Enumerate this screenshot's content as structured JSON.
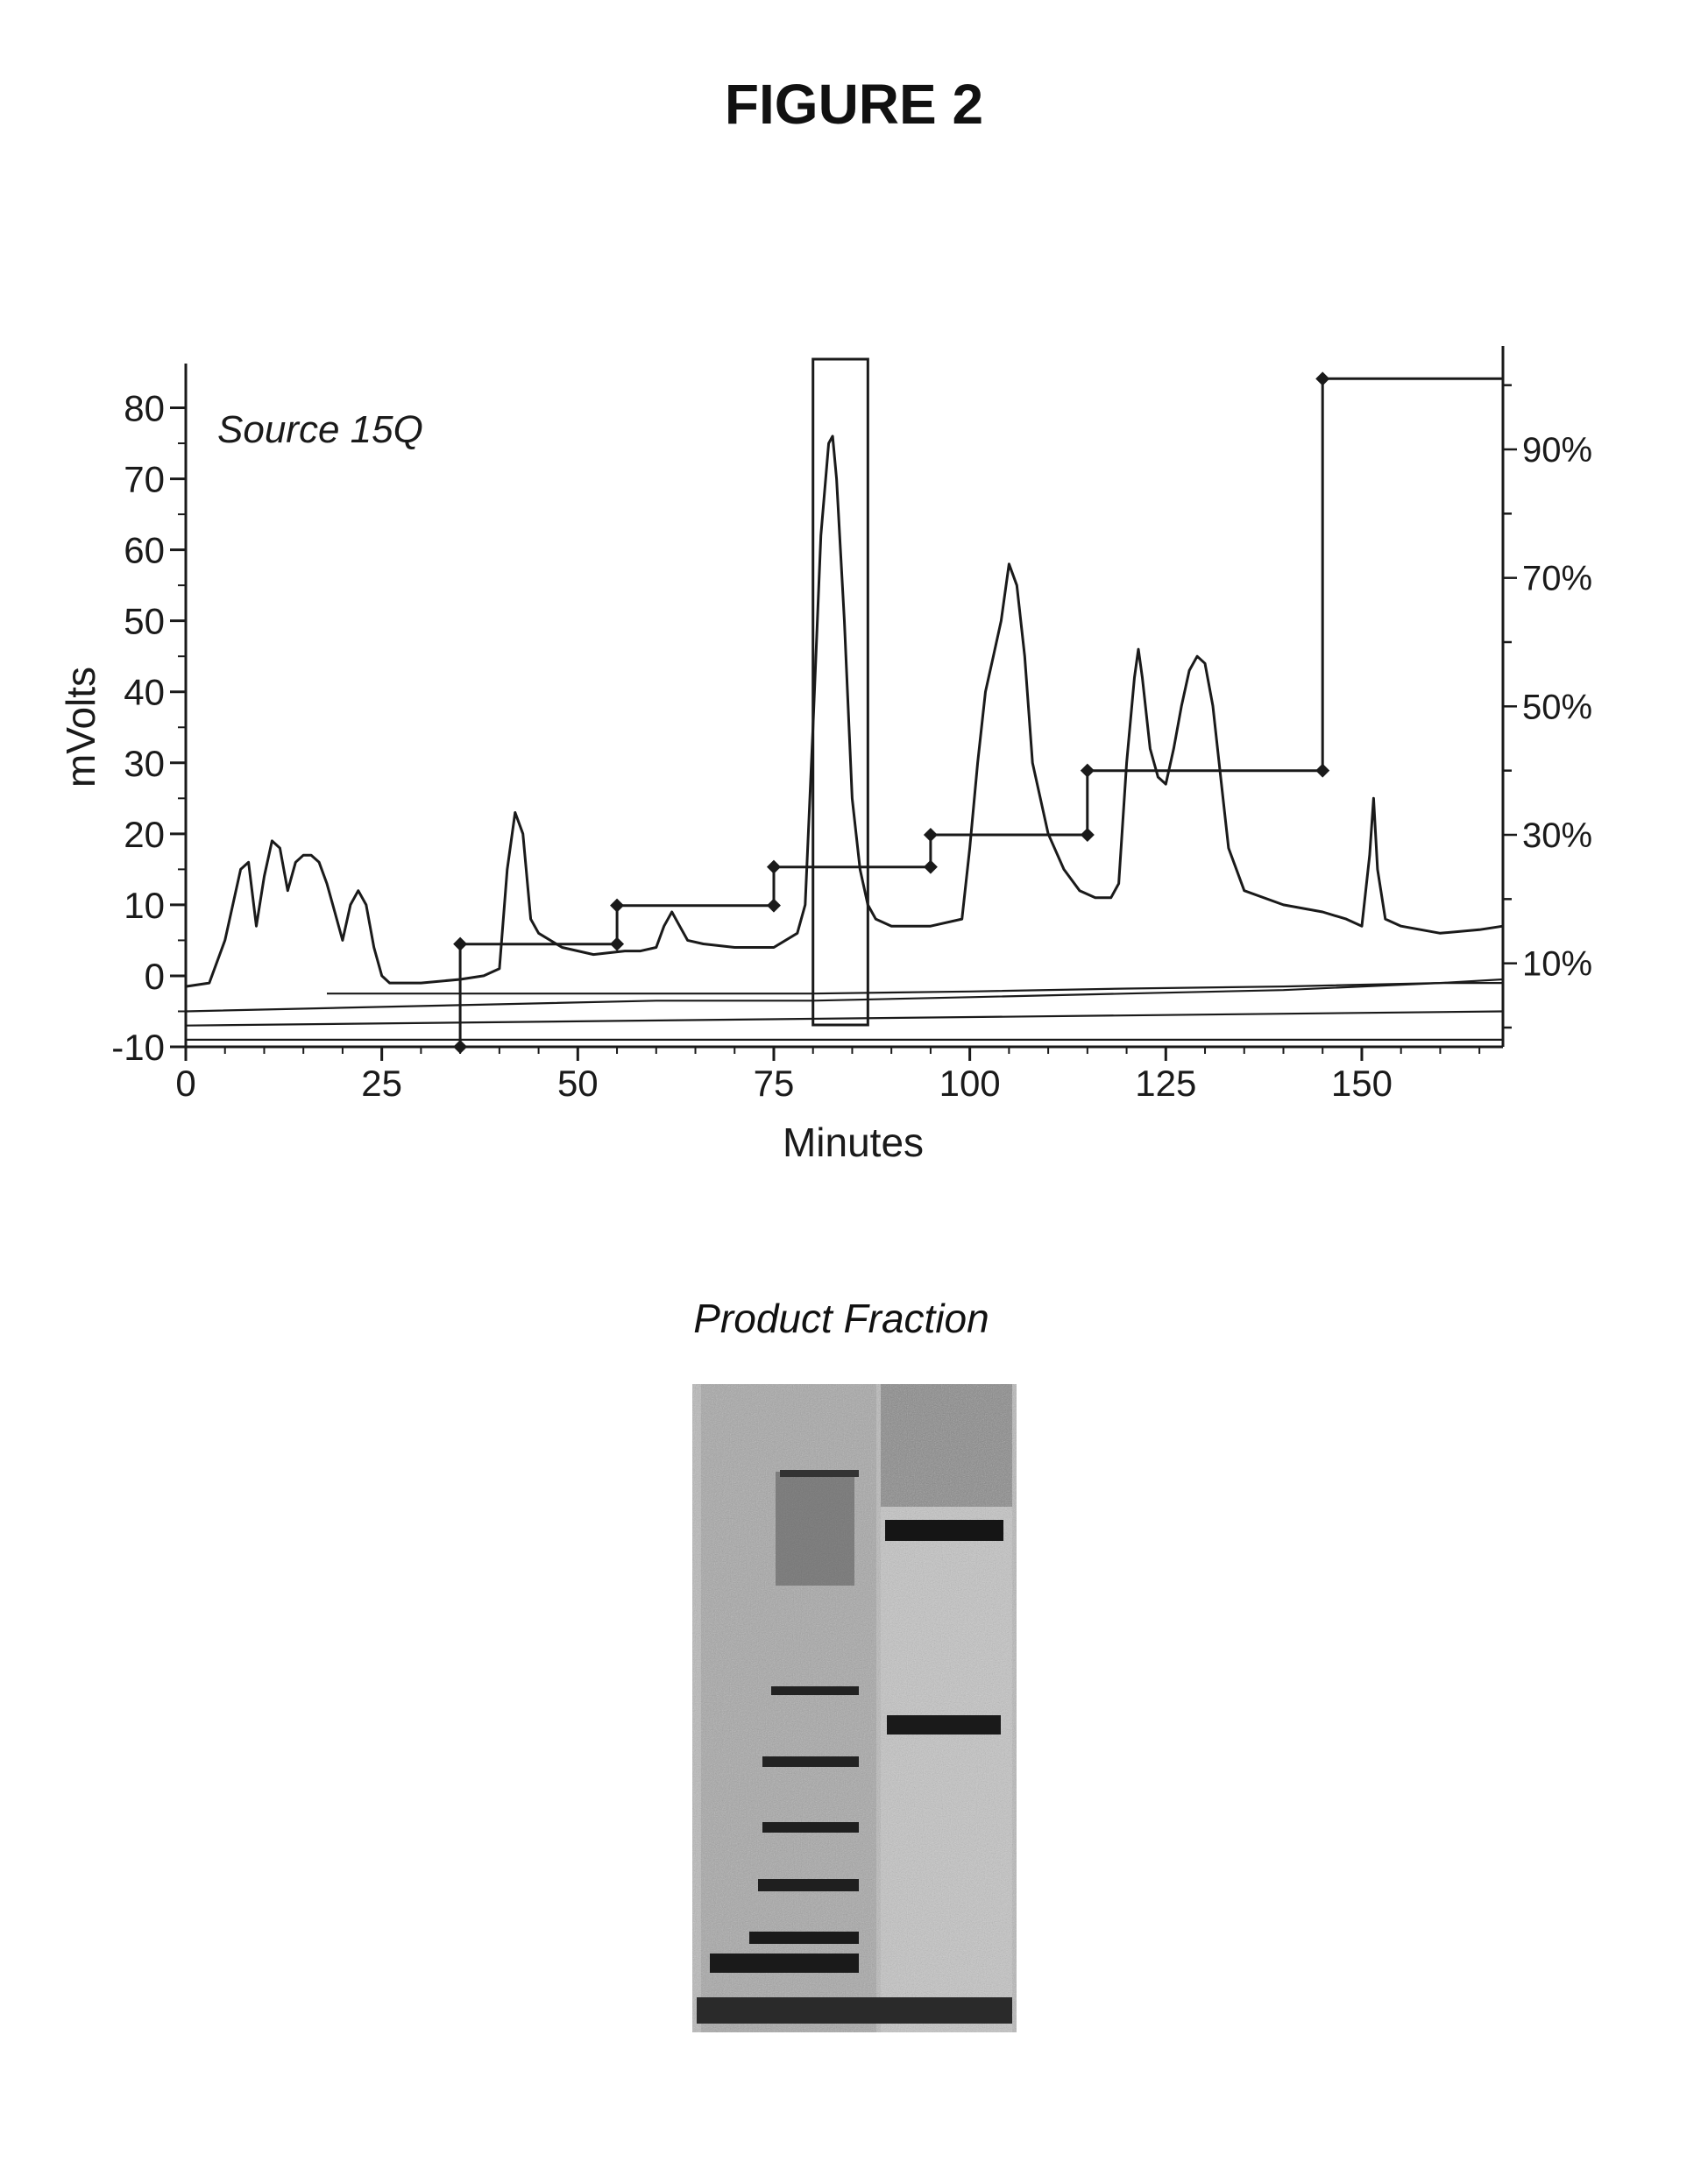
{
  "figure": {
    "title": "FIGURE 2"
  },
  "chart_data": {
    "type": "line",
    "annotation": "Source 15Q",
    "xlabel": "Minutes",
    "ylabel": "mVolts",
    "xlim": [
      0,
      168
    ],
    "ylim": [
      -10,
      85
    ],
    "x_ticks": [
      0,
      25,
      50,
      75,
      100,
      125,
      150
    ],
    "y_ticks": [
      80,
      70,
      60,
      50,
      40,
      30,
      20,
      10,
      0,
      -10
    ],
    "y2_ticks": [
      "90%",
      "70%",
      "50%",
      "30%",
      "10%"
    ],
    "y2_tick_values": [
      90,
      70,
      50,
      30,
      10
    ],
    "y2lim": [
      -3,
      102
    ],
    "grid": false,
    "highlight_box": {
      "x": [
        80,
        87
      ]
    },
    "series": [
      {
        "values_x": [
          0,
          3,
          5,
          7,
          8,
          9,
          10,
          11,
          12,
          13,
          14,
          15,
          16,
          17,
          18,
          19,
          20,
          21,
          22,
          23,
          24,
          25,
          26,
          27,
          28,
          30,
          35,
          38,
          40,
          41,
          42,
          43,
          44,
          45,
          48,
          52,
          56,
          58,
          60,
          61,
          62,
          63,
          64,
          66,
          70,
          75,
          78,
          79,
          80,
          81,
          82,
          82.5,
          83,
          84,
          85,
          86,
          87,
          88,
          90,
          95,
          99,
          100,
          101,
          102,
          103,
          104,
          105,
          106,
          107,
          108,
          110,
          112,
          114,
          116,
          118,
          119,
          120,
          121,
          121.5,
          122,
          123,
          124,
          125,
          126,
          127,
          128,
          129,
          130,
          131,
          132,
          133,
          135,
          140,
          145,
          148,
          150,
          151,
          151.5,
          152,
          153,
          155,
          160,
          165,
          168
        ],
        "values_y": [
          -1.5,
          -1,
          5,
          15,
          16,
          7,
          14,
          19,
          18,
          12,
          16,
          17,
          17,
          16,
          13,
          9,
          5,
          10,
          12,
          10,
          4,
          0,
          -1,
          -1,
          -1,
          -1,
          -0.5,
          0,
          1,
          15,
          23,
          20,
          8,
          6,
          4,
          3,
          3.5,
          3.5,
          4,
          7,
          9,
          7,
          5,
          4.5,
          4,
          4,
          6,
          10,
          35,
          62,
          75,
          76,
          70,
          50,
          25,
          15,
          10,
          8,
          7,
          7,
          8,
          18,
          30,
          40,
          45,
          50,
          58,
          55,
          45,
          30,
          20,
          15,
          12,
          11,
          11,
          13,
          30,
          42,
          46,
          42,
          32,
          28,
          27,
          32,
          38,
          43,
          45,
          44,
          38,
          28,
          18,
          12,
          10,
          9,
          8,
          7,
          17,
          25,
          15,
          8,
          7,
          6,
          6.5,
          7
        ]
      },
      {
        "values_x": [
          0,
          20,
          40,
          60,
          80,
          100,
          120,
          140,
          160,
          168
        ],
        "values_y": [
          -5,
          -4.5,
          -4,
          -3.5,
          -3.5,
          -3,
          -2.5,
          -2,
          -1,
          -1
        ]
      },
      {
        "values_x": [
          18,
          40,
          60,
          80,
          100,
          120,
          140,
          160,
          168
        ],
        "values_y": [
          -2.5,
          -2.5,
          -2.5,
          -2.5,
          -2.2,
          -1.8,
          -1.5,
          -1,
          -0.5
        ]
      },
      {
        "values_x": [
          0,
          168
        ],
        "values_y": [
          -7,
          -5
        ]
      },
      {
        "values_x": [
          0,
          168
        ],
        "values_y": [
          -9,
          -9
        ]
      }
    ],
    "gradient_steps": {
      "values_x": [
        35,
        35,
        35,
        55,
        55,
        75,
        75,
        95,
        95,
        115,
        115,
        145,
        145,
        168
      ],
      "values_y": [
        -3,
        0,
        13,
        13,
        19,
        19,
        25,
        25,
        30,
        30,
        40,
        40,
        101,
        101
      ],
      "marker_x": [
        35,
        35,
        55,
        55,
        75,
        75,
        95,
        95,
        115,
        115,
        145,
        145
      ],
      "marker_y": [
        -3,
        13,
        13,
        19,
        19,
        25,
        25,
        30,
        30,
        40,
        40,
        101
      ]
    }
  },
  "gel": {
    "title": "Product Fraction"
  }
}
